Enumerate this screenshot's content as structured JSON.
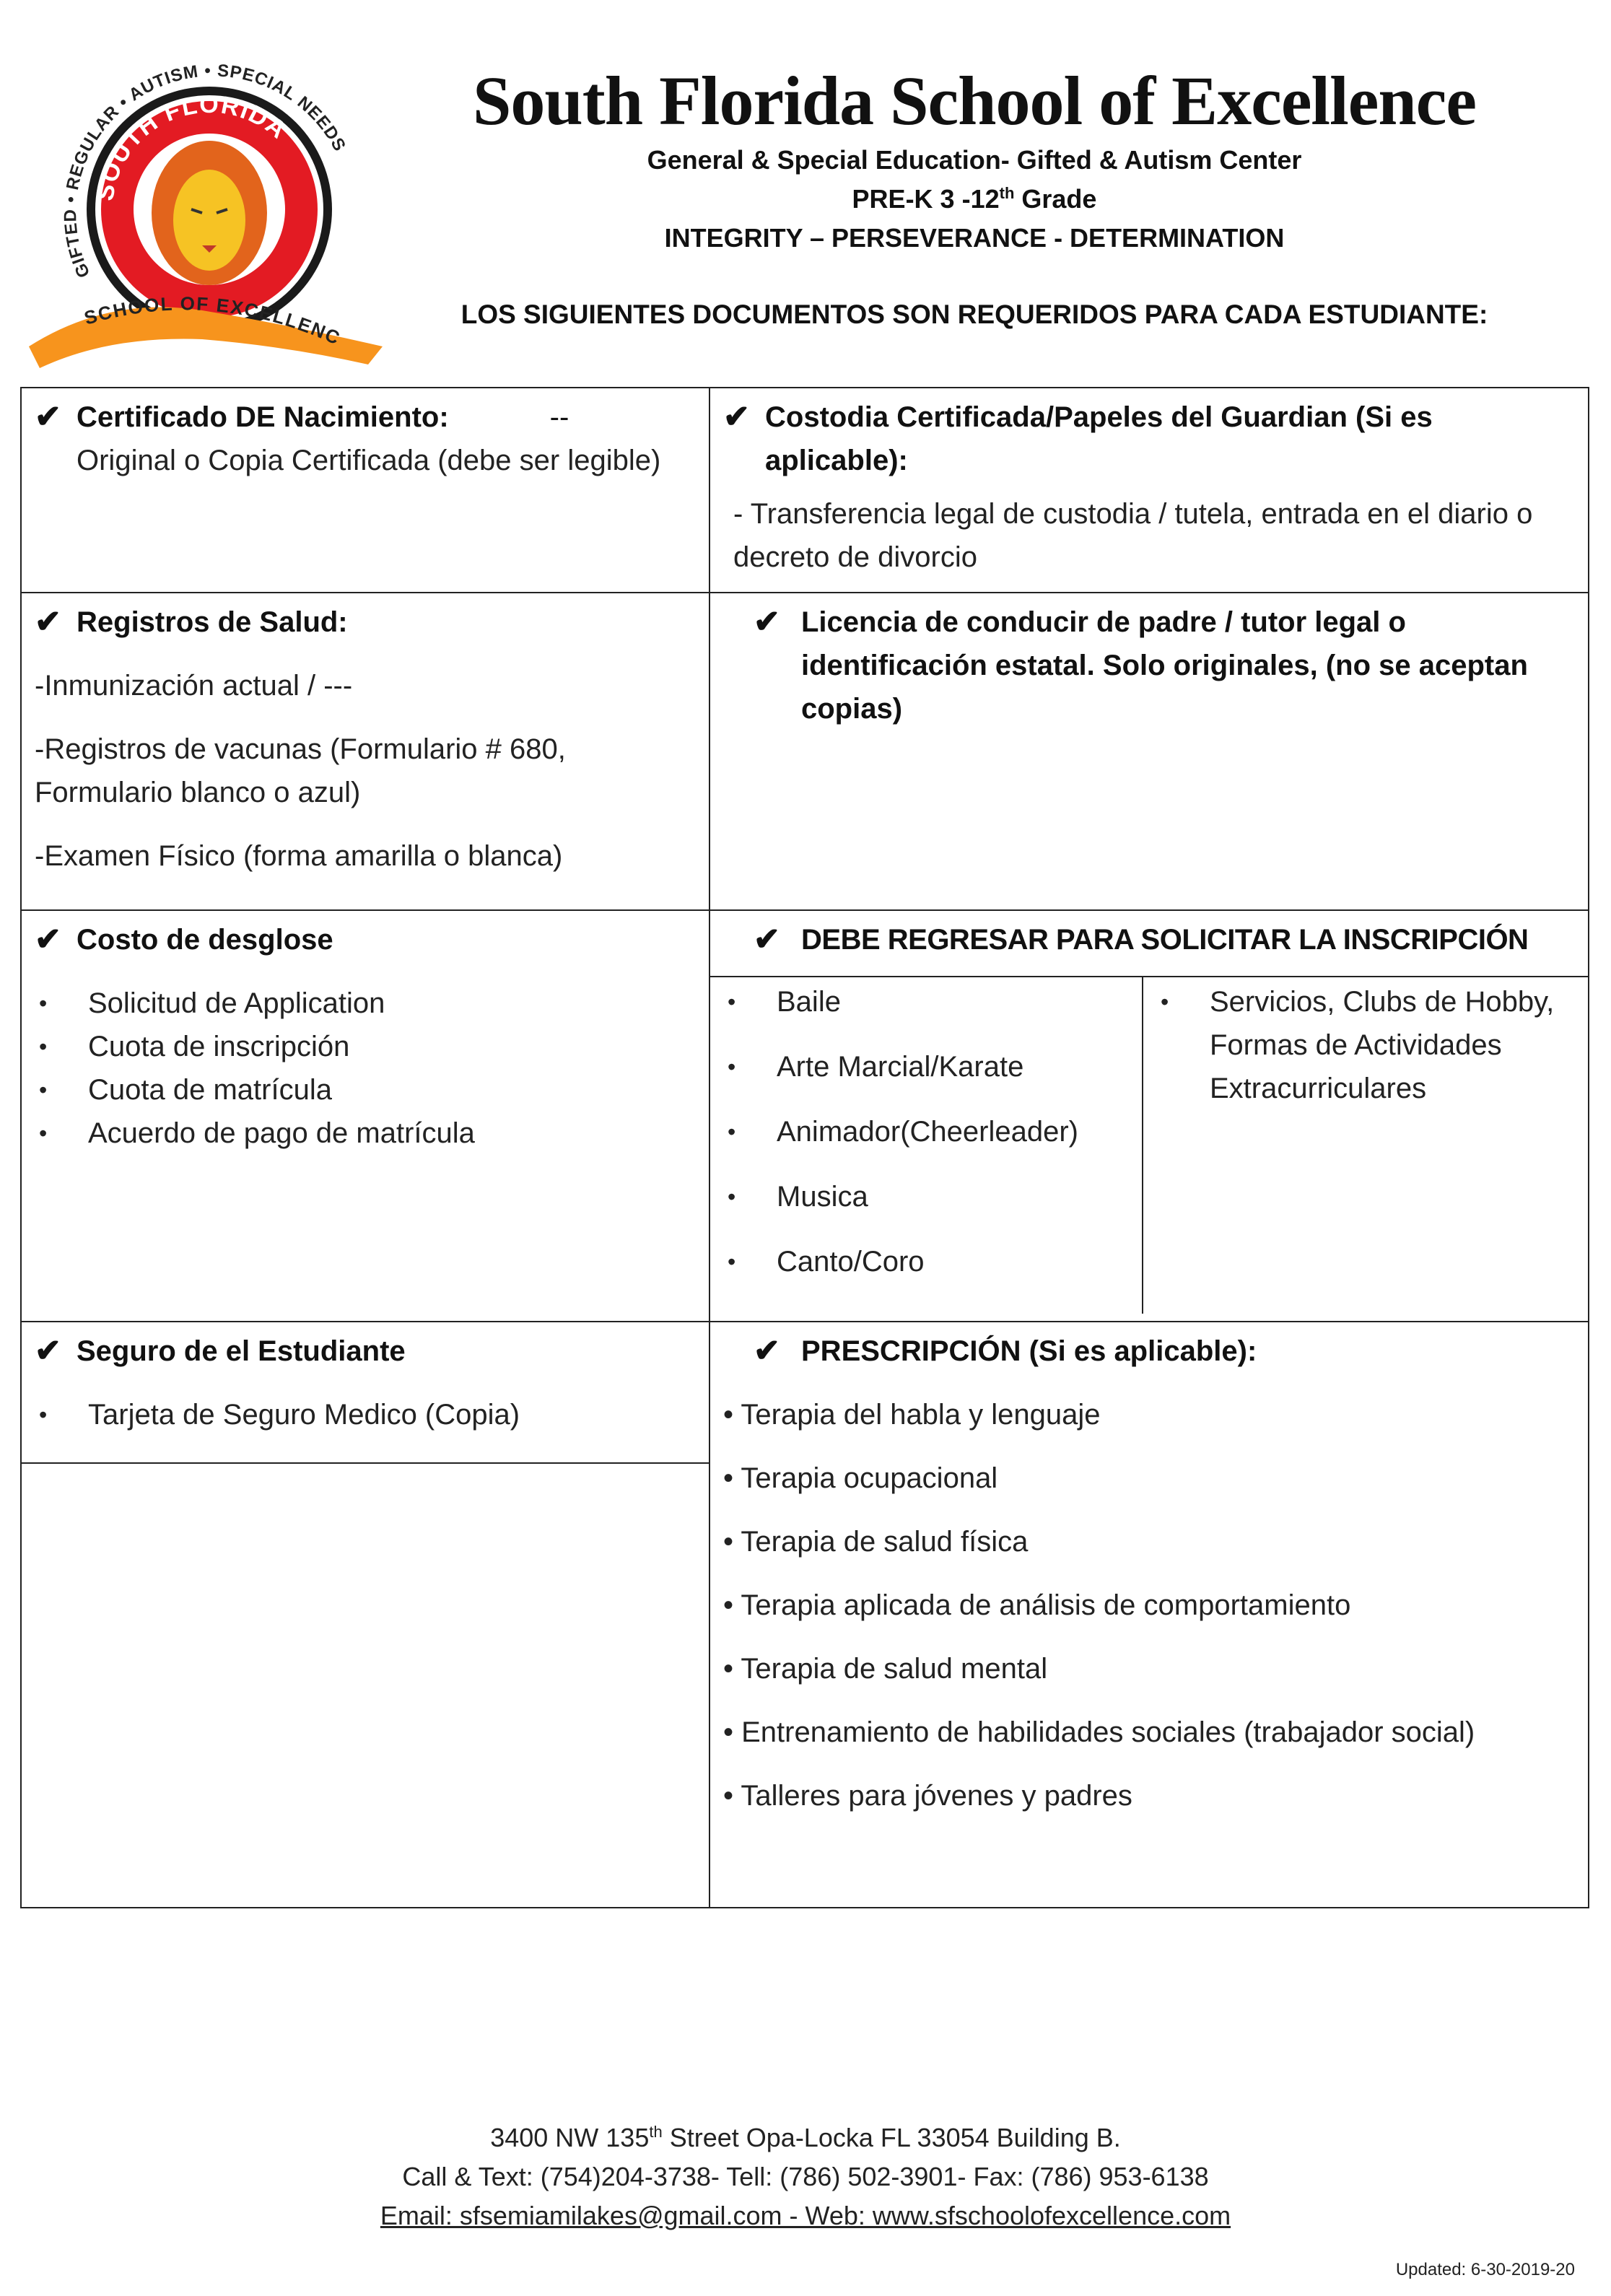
{
  "header": {
    "logo": {
      "ring_text": "GIFTED • REGULAR • AUTISM • SPECIAL NEEDS",
      "inner_text": "SOUTH FLORIDA",
      "banner_text": "SCHOOL OF EXCELLENCE",
      "colors": {
        "red": "#e31b23",
        "orange": "#f7941d",
        "black": "#1a1a1a"
      }
    },
    "title": "South Florida School of Excellence",
    "line1": "General & Special Education- Gifted & Autism Center",
    "line2_pre": "PRE-K 3 -12",
    "line2_sup": "th",
    "line2_post": " Grade",
    "line3": "INTEGRITY – PERSEVERANCE - DETERMINATION",
    "notice": "LOS SIGUIENTES DOCUMENTOS SON REQUERIDOS PARA CADA ESTUDIANTE:"
  },
  "table": {
    "birth": {
      "title": "Certificado DE Nacimiento:",
      "dash": "--",
      "text": "Original o Copia Certificada (debe ser legible)"
    },
    "custody": {
      "title": "Costodia Certificada/Papeles del Guardian (Si es aplicable):",
      "item": "-  Transferencia legal de custodia / tutela, entrada en el diario o decreto de divorcio"
    },
    "health": {
      "title": "Registros de Salud:",
      "items": [
        "-Inmunización actual / ---",
        "-Registros de vacunas (Formulario # 680, Formulario blanco o azul)",
        "-Examen Físico (forma amarilla o blanca)"
      ]
    },
    "license": {
      "title": "Licencia de conducir de padre / tutor legal o identificación estatal. Solo originales, (no se aceptan copias)"
    },
    "cost": {
      "title": "Costo de desglose",
      "items": [
        "Solicitud de Application",
        "Cuota de inscripción",
        "Cuota de matrícula",
        "Acuerdo de pago de matrícula"
      ]
    },
    "return": {
      "title": "DEBE REGRESAR PARA SOLICITAR LA INSCRIPCIÓN",
      "left_items": [
        "Baile",
        "Arte Marcial/Karate",
        "Animador(Cheerleader)",
        "Musica",
        "Canto/Coro"
      ],
      "right_items": [
        "Servicios, Clubs de Hobby, Formas de Actividades Extracurriculares"
      ]
    },
    "insurance": {
      "title": "Seguro de el Estudiante",
      "items": [
        "Tarjeta de Seguro Medico (Copia)"
      ]
    },
    "prescription": {
      "title": "PRESCRIPCIÓN (Si es aplicable):",
      "items": [
        "• Terapia del habla y lenguaje",
        "• Terapia ocupacional",
        "• Terapia de salud física",
        "• Terapia aplicada de análisis de comportamiento",
        "• Terapia de salud mental",
        "• Entrenamiento de habilidades sociales (trabajador social)",
        "• Talleres para jóvenes y padres"
      ]
    }
  },
  "footer": {
    "address_pre": "3400 NW 135",
    "address_sup": "th",
    "address_post": " Street Opa-Locka FL 33054 Building B.",
    "phones": "Call & Text: (754)204-3738- Tell: (786) 502-3901- Fax: (786) 953-6138",
    "contact": "Email: sfsemiamilakes@gmail.com - Web: www.sfschoolofexcellence.com",
    "updated": "Updated: 6-30-2019-20"
  }
}
